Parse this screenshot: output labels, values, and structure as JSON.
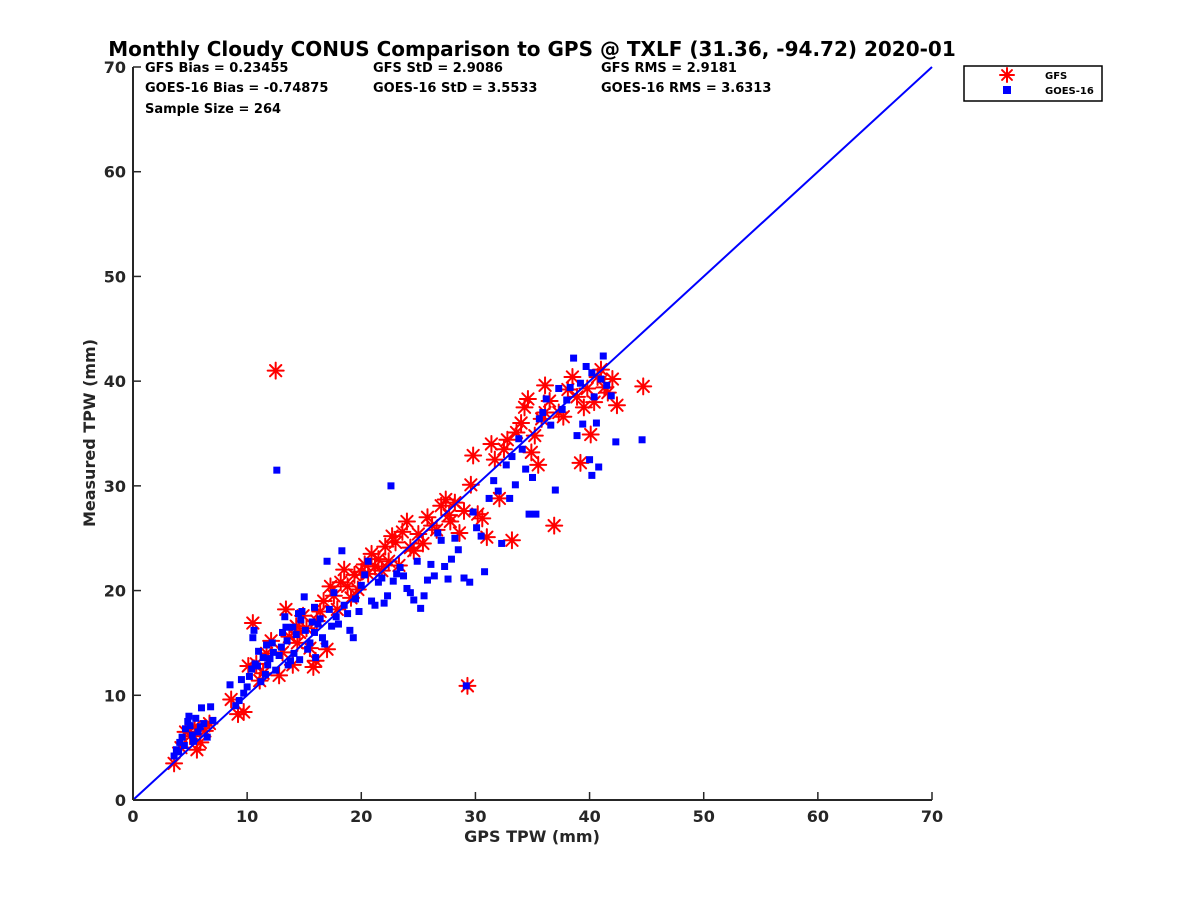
{
  "chart_data": {
    "type": "scatter",
    "title": "Monthly Cloudy CONUS Comparison to GPS @ TXLF (31.36, -94.72) 2020-01",
    "xlabel": "GPS TPW (mm)",
    "ylabel": "Measured TPW (mm)",
    "xlim": [
      0,
      70
    ],
    "ylim": [
      0,
      70
    ],
    "xticks": [
      0,
      10,
      20,
      30,
      40,
      50,
      60,
      70
    ],
    "yticks": [
      0,
      10,
      20,
      30,
      40,
      50,
      60,
      70
    ],
    "legend_position": "outside-top-right",
    "stats": {
      "gfs_bias": "GFS Bias = 0.23455",
      "gfs_std": "GFS StD = 2.9086",
      "gfs_rms": "GFS RMS = 2.9181",
      "goes_bias": "GOES-16 Bias = -0.74875",
      "goes_std": "GOES-16 StD = 3.5533",
      "goes_rms": "GOES-16 RMS = 3.6313",
      "sample_size": "Sample Size = 264"
    },
    "reference_line": {
      "name": "1:1 line",
      "points": [
        [
          0,
          0
        ],
        [
          70,
          70
        ]
      ],
      "color": "#0000ff"
    },
    "series": [
      {
        "name": "GOES-16",
        "marker": "square",
        "color": "#0000ff",
        "points": [
          [
            3.6,
            4.2
          ],
          [
            3.8,
            4.8
          ],
          [
            4.1,
            5.5
          ],
          [
            4.3,
            6.0
          ],
          [
            4.5,
            5.2
          ],
          [
            4.6,
            6.8
          ],
          [
            4.8,
            7.5
          ],
          [
            4.9,
            8.0
          ],
          [
            5.0,
            7.1
          ],
          [
            5.2,
            6.2
          ],
          [
            5.3,
            5.6
          ],
          [
            5.5,
            7.8
          ],
          [
            5.7,
            6.5
          ],
          [
            5.9,
            7.0
          ],
          [
            6.0,
            8.8
          ],
          [
            6.2,
            7.3
          ],
          [
            6.5,
            6.0
          ],
          [
            6.8,
            8.9
          ],
          [
            7.0,
            7.6
          ],
          [
            4.0,
            4.6
          ],
          [
            8.5,
            11.0
          ],
          [
            9.0,
            9.0
          ],
          [
            9.3,
            9.5
          ],
          [
            9.5,
            11.5
          ],
          [
            9.7,
            10.2
          ],
          [
            10.0,
            10.8
          ],
          [
            10.2,
            11.8
          ],
          [
            10.4,
            12.5
          ],
          [
            10.5,
            15.5
          ],
          [
            10.6,
            16.2
          ],
          [
            10.7,
            13.0
          ],
          [
            10.9,
            12.8
          ],
          [
            11.0,
            14.2
          ],
          [
            11.2,
            11.3
          ],
          [
            11.4,
            13.6
          ],
          [
            11.6,
            12.0
          ],
          [
            11.8,
            12.9
          ],
          [
            12.0,
            13.5
          ],
          [
            12.2,
            15.0
          ],
          [
            12.3,
            14.1
          ],
          [
            12.5,
            12.4
          ],
          [
            12.6,
            31.5
          ],
          [
            12.8,
            13.8
          ],
          [
            13.0,
            14.6
          ],
          [
            13.1,
            16.0
          ],
          [
            13.3,
            17.5
          ],
          [
            13.5,
            15.2
          ],
          [
            13.6,
            12.9
          ],
          [
            13.8,
            13.3
          ],
          [
            14.0,
            16.5
          ],
          [
            14.1,
            14.0
          ],
          [
            14.3,
            15.8
          ],
          [
            14.5,
            17.8
          ],
          [
            14.6,
            13.4
          ],
          [
            14.8,
            18.0
          ],
          [
            15.0,
            19.4
          ],
          [
            15.1,
            16.2
          ],
          [
            15.3,
            14.4
          ],
          [
            15.5,
            15.0
          ],
          [
            15.7,
            17.0
          ],
          [
            15.9,
            18.4
          ],
          [
            16.0,
            13.6
          ],
          [
            16.2,
            16.8
          ],
          [
            16.4,
            17.3
          ],
          [
            16.6,
            15.5
          ],
          [
            16.8,
            14.9
          ],
          [
            17.0,
            22.8
          ],
          [
            17.2,
            18.2
          ],
          [
            17.4,
            16.6
          ],
          [
            17.6,
            19.8
          ],
          [
            17.8,
            17.5
          ],
          [
            18.0,
            16.8
          ],
          [
            18.3,
            23.8
          ],
          [
            18.5,
            18.6
          ],
          [
            18.8,
            17.8
          ],
          [
            19.0,
            16.2
          ],
          [
            19.3,
            15.5
          ],
          [
            19.5,
            19.2
          ],
          [
            19.8,
            18.0
          ],
          [
            20.0,
            20.5
          ],
          [
            20.3,
            21.5
          ],
          [
            20.6,
            22.8
          ],
          [
            20.9,
            19.0
          ],
          [
            21.2,
            18.6
          ],
          [
            21.5,
            20.8
          ],
          [
            21.8,
            21.2
          ],
          [
            22.0,
            18.8
          ],
          [
            22.3,
            19.5
          ],
          [
            22.6,
            30.0
          ],
          [
            22.8,
            20.9
          ],
          [
            23.1,
            21.6
          ],
          [
            23.4,
            22.2
          ],
          [
            23.7,
            21.4
          ],
          [
            24.0,
            20.2
          ],
          [
            24.3,
            19.8
          ],
          [
            24.6,
            19.1
          ],
          [
            24.9,
            22.8
          ],
          [
            25.2,
            18.3
          ],
          [
            25.5,
            19.5
          ],
          [
            25.8,
            21.0
          ],
          [
            26.1,
            22.5
          ],
          [
            26.4,
            21.4
          ],
          [
            26.7,
            25.5
          ],
          [
            27.0,
            24.8
          ],
          [
            27.3,
            22.3
          ],
          [
            27.6,
            21.1
          ],
          [
            27.9,
            23.0
          ],
          [
            28.2,
            25.0
          ],
          [
            28.5,
            23.9
          ],
          [
            29.0,
            21.2
          ],
          [
            29.2,
            10.9
          ],
          [
            29.5,
            20.8
          ],
          [
            29.8,
            27.5
          ],
          [
            30.1,
            26.0
          ],
          [
            30.5,
            25.2
          ],
          [
            30.8,
            21.8
          ],
          [
            31.2,
            28.8
          ],
          [
            31.6,
            30.5
          ],
          [
            32.0,
            29.5
          ],
          [
            32.3,
            24.5
          ],
          [
            32.7,
            32.0
          ],
          [
            33.0,
            28.8
          ],
          [
            33.2,
            32.8
          ],
          [
            33.5,
            30.1
          ],
          [
            33.8,
            34.5
          ],
          [
            34.1,
            33.5
          ],
          [
            34.4,
            31.6
          ],
          [
            34.7,
            27.3
          ],
          [
            35.0,
            30.8
          ],
          [
            35.3,
            27.3
          ],
          [
            35.6,
            36.4
          ],
          [
            35.9,
            37.0
          ],
          [
            36.2,
            38.3
          ],
          [
            36.6,
            35.8
          ],
          [
            37.0,
            29.6
          ],
          [
            37.3,
            39.3
          ],
          [
            37.6,
            37.3
          ],
          [
            38.0,
            38.2
          ],
          [
            38.3,
            39.4
          ],
          [
            38.6,
            42.2
          ],
          [
            38.9,
            34.8
          ],
          [
            39.2,
            39.8
          ],
          [
            39.4,
            35.9
          ],
          [
            39.7,
            41.4
          ],
          [
            40.0,
            32.5
          ],
          [
            40.2,
            40.8
          ],
          [
            40.4,
            38.5
          ],
          [
            40.6,
            36.0
          ],
          [
            40.8,
            31.8
          ],
          [
            41.0,
            40.2
          ],
          [
            41.2,
            42.4
          ],
          [
            41.5,
            39.6
          ],
          [
            41.9,
            38.6
          ],
          [
            42.3,
            34.2
          ],
          [
            44.6,
            34.4
          ],
          [
            40.2,
            31.0
          ],
          [
            13.4,
            16.5
          ],
          [
            14.7,
            17.2
          ],
          [
            15.9,
            16.0
          ],
          [
            11.7,
            14.8
          ]
        ]
      },
      {
        "name": "GFS",
        "marker": "asterisk",
        "color": "#ff0000",
        "points": [
          [
            3.6,
            3.5
          ],
          [
            4.2,
            5.0
          ],
          [
            4.6,
            6.5
          ],
          [
            5.0,
            6.1
          ],
          [
            5.4,
            7.0
          ],
          [
            5.6,
            4.8
          ],
          [
            5.9,
            5.5
          ],
          [
            6.3,
            6.6
          ],
          [
            6.7,
            7.3
          ],
          [
            8.6,
            9.6
          ],
          [
            9.2,
            8.2
          ],
          [
            9.7,
            8.4
          ],
          [
            10.1,
            12.8
          ],
          [
            10.5,
            16.9
          ],
          [
            10.8,
            13.0
          ],
          [
            11.1,
            11.4
          ],
          [
            11.4,
            12.1
          ],
          [
            11.7,
            14.0
          ],
          [
            12.1,
            15.2
          ],
          [
            12.5,
            41.0
          ],
          [
            12.8,
            11.9
          ],
          [
            13.1,
            14.1
          ],
          [
            13.4,
            18.2
          ],
          [
            13.7,
            15.6
          ],
          [
            14.0,
            12.9
          ],
          [
            14.3,
            16.6
          ],
          [
            14.6,
            16.0
          ],
          [
            14.9,
            17.6
          ],
          [
            15.2,
            16.4
          ],
          [
            15.5,
            14.5
          ],
          [
            15.8,
            12.7
          ],
          [
            16.1,
            17.1
          ],
          [
            16.4,
            18.0
          ],
          [
            16.7,
            19.0
          ],
          [
            17.0,
            14.4
          ],
          [
            17.3,
            20.4
          ],
          [
            17.6,
            19.5
          ],
          [
            17.9,
            18.2
          ],
          [
            18.2,
            20.8
          ],
          [
            18.5,
            22.0
          ],
          [
            18.8,
            20.4
          ],
          [
            19.1,
            19.3
          ],
          [
            19.4,
            21.5
          ],
          [
            19.7,
            20.1
          ],
          [
            20.0,
            21.8
          ],
          [
            20.3,
            22.5
          ],
          [
            20.6,
            21.6
          ],
          [
            20.9,
            23.5
          ],
          [
            21.2,
            22.3
          ],
          [
            21.5,
            23.0
          ],
          [
            21.8,
            21.9
          ],
          [
            22.1,
            24.2
          ],
          [
            22.4,
            22.8
          ],
          [
            22.7,
            25.2
          ],
          [
            23.0,
            24.6
          ],
          [
            23.3,
            22.4
          ],
          [
            23.6,
            25.6
          ],
          [
            24.0,
            26.6
          ],
          [
            24.3,
            24.1
          ],
          [
            24.6,
            23.8
          ],
          [
            25.0,
            25.4
          ],
          [
            25.4,
            24.5
          ],
          [
            25.8,
            27.0
          ],
          [
            26.2,
            26.2
          ],
          [
            26.6,
            25.8
          ],
          [
            27.0,
            28.1
          ],
          [
            27.4,
            28.7
          ],
          [
            27.8,
            26.6
          ],
          [
            28.2,
            28.4
          ],
          [
            28.6,
            25.5
          ],
          [
            29.0,
            27.6
          ],
          [
            29.3,
            10.9
          ],
          [
            29.6,
            30.1
          ],
          [
            29.8,
            32.9
          ],
          [
            30.2,
            27.3
          ],
          [
            30.6,
            26.9
          ],
          [
            31.0,
            25.1
          ],
          [
            31.4,
            34.0
          ],
          [
            31.7,
            32.5
          ],
          [
            32.1,
            28.8
          ],
          [
            32.5,
            33.5
          ],
          [
            32.8,
            34.4
          ],
          [
            33.2,
            24.8
          ],
          [
            33.6,
            35.1
          ],
          [
            34.0,
            36.0
          ],
          [
            34.3,
            37.5
          ],
          [
            34.6,
            38.3
          ],
          [
            34.9,
            33.2
          ],
          [
            35.2,
            34.8
          ],
          [
            35.5,
            32.0
          ],
          [
            35.8,
            36.4
          ],
          [
            36.1,
            39.6
          ],
          [
            36.5,
            38.1
          ],
          [
            36.9,
            26.2
          ],
          [
            37.3,
            37.0
          ],
          [
            37.7,
            36.6
          ],
          [
            38.1,
            39.2
          ],
          [
            38.5,
            40.4
          ],
          [
            38.9,
            38.5
          ],
          [
            39.2,
            32.2
          ],
          [
            39.5,
            37.5
          ],
          [
            39.8,
            39.3
          ],
          [
            40.1,
            34.9
          ],
          [
            40.4,
            38.0
          ],
          [
            40.7,
            40.4
          ],
          [
            41.0,
            41.1
          ],
          [
            41.3,
            39.4
          ],
          [
            41.6,
            38.9
          ],
          [
            42.0,
            40.2
          ],
          [
            42.4,
            37.7
          ],
          [
            44.7,
            39.5
          ],
          [
            36.1,
            37.0
          ],
          [
            27.7,
            27.2
          ],
          [
            16.0,
            13.3
          ],
          [
            14.4,
            15.0
          ]
        ]
      }
    ]
  }
}
